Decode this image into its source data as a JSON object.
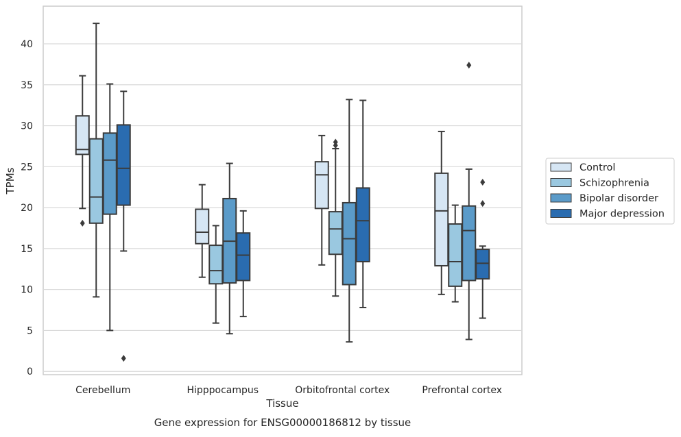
{
  "chart_data": {
    "type": "box",
    "title": "",
    "caption": "Gene expression for ENSG00000186812 by tissue",
    "xlabel": "Tissue",
    "ylabel": "TPMs",
    "ylim": [
      -0.4,
      44.6
    ],
    "yticks": [
      0,
      5,
      10,
      15,
      20,
      25,
      30,
      35,
      40
    ],
    "categories": [
      "Cerebellum",
      "Hipppocampus",
      "Orbitofrontal cortex",
      "Prefrontal cortex"
    ],
    "grid": "horizontal",
    "legend_position": "right",
    "series": [
      {
        "name": "Control",
        "color": "#d6e6f4",
        "boxes": [
          {
            "whisker_low": 19.9,
            "q1": 26.5,
            "median": 27.1,
            "q3": 31.2,
            "whisker_high": 36.1,
            "outliers": [
              18.1
            ]
          },
          {
            "whisker_low": 11.5,
            "q1": 15.6,
            "median": 17.0,
            "q3": 19.8,
            "whisker_high": 22.8,
            "outliers": []
          },
          {
            "whisker_low": 13.0,
            "q1": 19.9,
            "median": 24.0,
            "q3": 25.6,
            "whisker_high": 28.8,
            "outliers": []
          },
          {
            "whisker_low": 9.4,
            "q1": 12.9,
            "median": 19.6,
            "q3": 24.2,
            "whisker_high": 29.3,
            "outliers": []
          }
        ]
      },
      {
        "name": "Schizophrenia",
        "color": "#9ac8e0",
        "boxes": [
          {
            "whisker_low": 9.1,
            "q1": 18.1,
            "median": 21.3,
            "q3": 28.4,
            "whisker_high": 42.5,
            "outliers": []
          },
          {
            "whisker_low": 5.9,
            "q1": 10.7,
            "median": 12.3,
            "q3": 15.4,
            "whisker_high": 17.8,
            "outliers": []
          },
          {
            "whisker_low": 9.2,
            "q1": 14.3,
            "median": 17.4,
            "q3": 19.5,
            "whisker_high": 27.2,
            "outliers": [
              27.6,
              28.0
            ]
          },
          {
            "whisker_low": 8.5,
            "q1": 10.4,
            "median": 13.4,
            "q3": 18.0,
            "whisker_high": 20.3,
            "outliers": []
          }
        ]
      },
      {
        "name": "Bipolar disorder",
        "color": "#5b9bc9",
        "boxes": [
          {
            "whisker_low": 5.0,
            "q1": 19.2,
            "median": 25.8,
            "q3": 29.1,
            "whisker_high": 35.1,
            "outliers": []
          },
          {
            "whisker_low": 4.6,
            "q1": 10.8,
            "median": 15.9,
            "q3": 21.1,
            "whisker_high": 25.4,
            "outliers": []
          },
          {
            "whisker_low": 3.6,
            "q1": 10.6,
            "median": 16.2,
            "q3": 20.6,
            "whisker_high": 33.2,
            "outliers": []
          },
          {
            "whisker_low": 3.9,
            "q1": 11.1,
            "median": 17.2,
            "q3": 20.2,
            "whisker_high": 24.7,
            "outliers": [
              37.4
            ]
          }
        ]
      },
      {
        "name": "Major depression",
        "color": "#2a6cb0",
        "boxes": [
          {
            "whisker_low": 14.7,
            "q1": 20.3,
            "median": 24.8,
            "q3": 30.1,
            "whisker_high": 34.2,
            "outliers": [
              1.6
            ]
          },
          {
            "whisker_low": 6.7,
            "q1": 11.1,
            "median": 14.2,
            "q3": 16.9,
            "whisker_high": 19.6,
            "outliers": []
          },
          {
            "whisker_low": 7.8,
            "q1": 13.4,
            "median": 18.4,
            "q3": 22.4,
            "whisker_high": 33.1,
            "outliers": []
          },
          {
            "whisker_low": 6.5,
            "q1": 11.3,
            "median": 13.2,
            "q3": 14.9,
            "whisker_high": 15.3,
            "outliers": [
              20.5,
              23.1
            ]
          }
        ]
      }
    ]
  }
}
